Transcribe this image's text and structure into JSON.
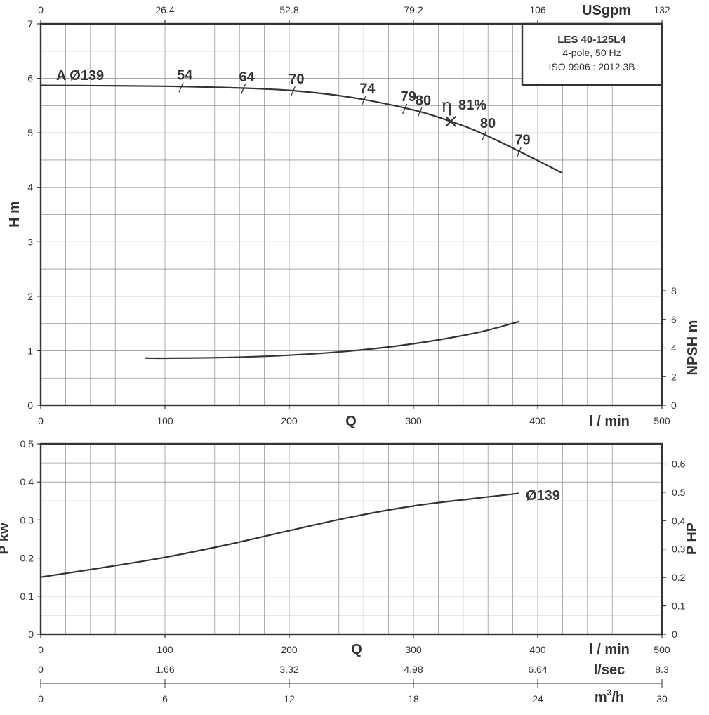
{
  "chart_data": [
    {
      "type": "line",
      "panel": "head",
      "info_box": {
        "model": "LES 40-125L4",
        "speed": "4-pole, 50 Hz",
        "standard": "ISO 9906 : 2012 3B"
      },
      "x_axis": {
        "label": "Q",
        "unit": "l / min",
        "range": [
          0,
          500
        ],
        "ticks": [
          0,
          100,
          200,
          300,
          400,
          500
        ]
      },
      "x2_axis": {
        "unit": "USgpm",
        "ticks": [
          "0",
          "26.4",
          "52.8",
          "79.2",
          "106",
          "132"
        ]
      },
      "y_axis": {
        "label": "H m",
        "range": [
          0,
          7
        ],
        "ticks": [
          0,
          1,
          2,
          3,
          4,
          5,
          6,
          7
        ]
      },
      "y2_axis": {
        "label": "NPSH m",
        "range": [
          0,
          8
        ],
        "ticks": [
          0,
          2,
          4,
          6,
          8
        ]
      },
      "series": [
        {
          "name": "A Ø139",
          "axis": "H",
          "x": [
            0,
            50,
            100,
            150,
            200,
            250,
            300,
            330,
            350,
            380,
            420
          ],
          "y": [
            5.87,
            5.865,
            5.855,
            5.83,
            5.78,
            5.65,
            5.42,
            5.21,
            5.04,
            4.72,
            4.26
          ]
        },
        {
          "name": "NPSH",
          "axis": "NPSH",
          "x": [
            84,
            100,
            150,
            200,
            250,
            300,
            350,
            385
          ],
          "y": [
            3.3,
            3.29,
            3.34,
            3.5,
            3.8,
            4.3,
            5.05,
            5.85
          ]
        }
      ],
      "efficiency_marks": [
        {
          "q": 113,
          "label": "54"
        },
        {
          "q": 163,
          "label": "64"
        },
        {
          "q": 203,
          "label": "70"
        },
        {
          "q": 260,
          "label": "74"
        },
        {
          "q": 293,
          "label": "79"
        },
        {
          "q": 305,
          "label": "80"
        },
        {
          "q": 357,
          "label": "80"
        },
        {
          "q": 385,
          "label": "79"
        }
      ],
      "bep": {
        "q": 330,
        "symbol": "η",
        "label": "81%"
      }
    },
    {
      "type": "line",
      "panel": "power",
      "x_axis": {
        "label": "Q",
        "unit": "l / min",
        "range": [
          0,
          500
        ],
        "ticks": [
          0,
          100,
          200,
          300,
          400,
          500
        ]
      },
      "y_axis": {
        "label": "P kw",
        "range": [
          0,
          0.5
        ],
        "ticks": [
          "0",
          "0.1",
          "0.2",
          "0.3",
          "0.4",
          "0.5"
        ]
      },
      "y2_axis": {
        "label": "P HP",
        "ticks": [
          "0",
          "0.1",
          "0.2",
          "0.3",
          "0.4",
          "0.5",
          "0.6"
        ]
      },
      "series": [
        {
          "name": "Ø139",
          "x": [
            0,
            50,
            100,
            150,
            200,
            250,
            300,
            350,
            385
          ],
          "y": [
            0.15,
            0.175,
            0.202,
            0.235,
            0.272,
            0.308,
            0.337,
            0.357,
            0.37
          ]
        }
      ]
    }
  ],
  "flow_scales": {
    "lsec": {
      "unit": "l/sec",
      "ticks": [
        "0",
        "1.66",
        "3.32",
        "4.98",
        "6.64",
        "8.3"
      ]
    },
    "m3h": {
      "unit_base": "m",
      "unit_sup": "3",
      "unit_tail": "/h",
      "ticks": [
        "0",
        "6",
        "12",
        "18",
        "24",
        "30"
      ]
    }
  }
}
